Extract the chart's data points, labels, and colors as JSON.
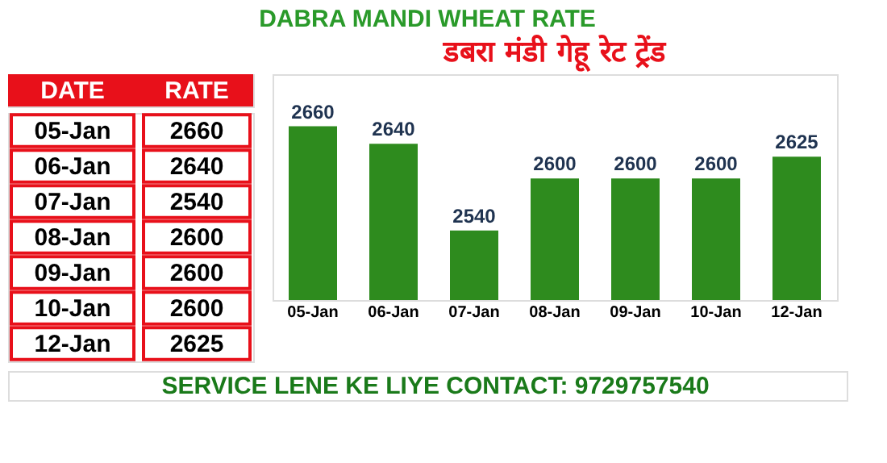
{
  "chart_data": [
    {
      "type": "other",
      "categories": [
        "05-Jan",
        "06-Jan",
        "07-Jan",
        "08-Jan",
        "09-Jan",
        "10-Jan",
        "12-Jan"
      ],
      "values": [
        2660,
        2640,
        2540,
        2600,
        2600,
        2600,
        2625
      ],
      "data_labels": true,
      "annotations": [
        "DATE",
        "RATE"
      ]
    },
    {
      "type": "bar",
      "title": "डबरा मंडी गेहू रेट ट्रेंड",
      "subtitle": "DABRA MANDI WHEAT RATE",
      "categories": [
        "05-Jan",
        "06-Jan",
        "07-Jan",
        "08-Jan",
        "09-Jan",
        "10-Jan",
        "12-Jan"
      ],
      "values": [
        2660,
        2640,
        2540,
        2600,
        2600,
        2600,
        2625
      ],
      "color": "#2e8b1e",
      "ylim": [
        2460,
        2720
      ],
      "tick_labels": "x",
      "grid": false,
      "data_labels": true,
      "annotations": [
        "SERVICE LENE KE LIYE CONTACT: 9729757540"
      ]
    }
  ]
}
